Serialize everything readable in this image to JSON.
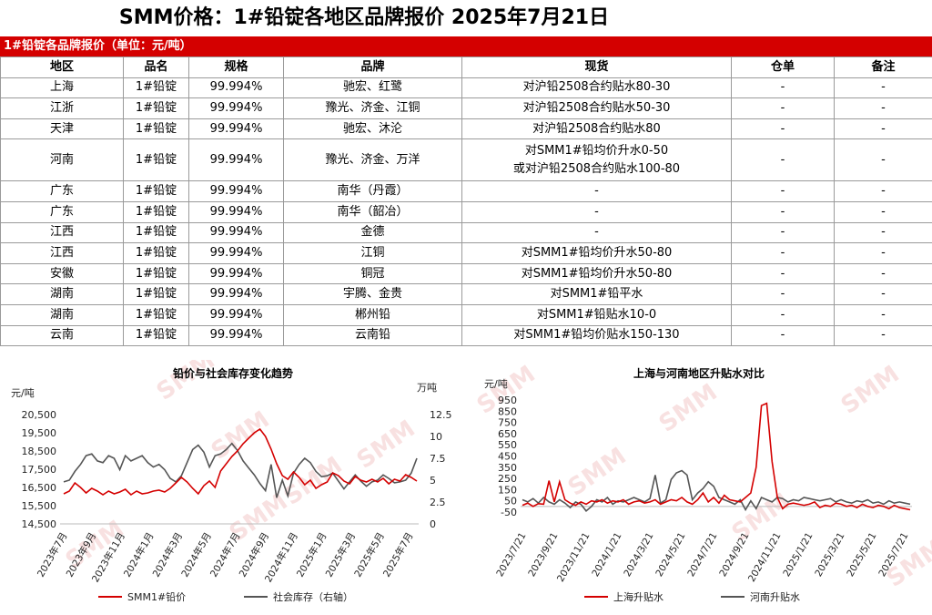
{
  "page": {
    "title": "SMM价格：1#铅锭各地区品牌报价 2025年7月21日",
    "banner": "1#铅锭各品牌报价（单位：元/吨）"
  },
  "table": {
    "headers": [
      "地区",
      "品名",
      "规格",
      "品牌",
      "现货",
      "仓单",
      "备注"
    ],
    "rows": [
      [
        "上海",
        "1#铅锭",
        "99.994%",
        "驰宏、红鹭",
        "对沪铅2508合约贴水80-30",
        "-",
        "-"
      ],
      [
        "江浙",
        "1#铅锭",
        "99.994%",
        "豫光、济金、江铜",
        "对沪铅2508合约贴水50-30",
        "-",
        "-"
      ],
      [
        "天津",
        "1#铅锭",
        "99.994%",
        "驰宏、沐沦",
        "对沪铅2508合约贴水80",
        "-",
        "-"
      ],
      [
        "河南",
        "1#铅锭",
        "99.994%",
        "豫光、济金、万洋",
        "对SMM1#铅均价升水0-50\n或对沪铅2508合约贴水100-80",
        "-",
        "-"
      ],
      [
        "广东",
        "1#铅锭",
        "99.994%",
        "南华（丹霞）",
        "-",
        "-",
        "-"
      ],
      [
        "广东",
        "1#铅锭",
        "99.994%",
        "南华（韶冶）",
        "-",
        "-",
        "-"
      ],
      [
        "江西",
        "1#铅锭",
        "99.994%",
        "金德",
        "-",
        "-",
        "-"
      ],
      [
        "江西",
        "1#铅锭",
        "99.994%",
        "江铜",
        "对SMM1#铅均价升水50-80",
        "-",
        "-"
      ],
      [
        "安徽",
        "1#铅锭",
        "99.994%",
        "铜冠",
        "对SMM1#铅均价升水50-80",
        "-",
        "-"
      ],
      [
        "湖南",
        "1#铅锭",
        "99.994%",
        "宇腾、金贵",
        "对SMM1#铅平水",
        "-",
        "-"
      ],
      [
        "湖南",
        "1#铅锭",
        "99.994%",
        "郴州铅",
        "对SMM1#铅贴水10-0",
        "-",
        "-"
      ],
      [
        "云南",
        "1#铅锭",
        "99.994%",
        "云南铅",
        "对SMM1#铅均价贴水150-130",
        "-",
        "-"
      ]
    ]
  },
  "watermark": "SMM",
  "chart_data": [
    {
      "type": "line",
      "title": "铅价与社会库存变化趋势",
      "ylabel": "元/吨",
      "y2label": "万吨",
      "ylim": [
        14500,
        20500
      ],
      "yticks": [
        "20,500",
        "19,500",
        "18,500",
        "17,500",
        "16,500",
        "15,500",
        "14,500"
      ],
      "y2lim": [
        0,
        12.5
      ],
      "y2ticks": [
        "12.5",
        "10",
        "7.5",
        "5",
        "2.5",
        "0"
      ],
      "xticks": [
        "2023年7月",
        "2023年9月",
        "2023年11月",
        "2024年1月",
        "2024年3月",
        "2024年5月",
        "2024年7月",
        "2024年9月",
        "2024年11月",
        "2025年1月",
        "2025年3月",
        "2025年5月",
        "2025年7月"
      ],
      "colors": {
        "SMM1#铅价": "#d40000",
        "社会库存（右轴）": "#555555"
      },
      "series": [
        {
          "name": "SMM1#铅价",
          "axis": "left",
          "values": [
            16150,
            16300,
            16750,
            16500,
            16200,
            16450,
            16300,
            16100,
            16300,
            16150,
            16250,
            16400,
            16100,
            16300,
            16150,
            16200,
            16300,
            16350,
            16250,
            16450,
            16750,
            17050,
            16800,
            16450,
            16150,
            16600,
            16850,
            16500,
            17400,
            17800,
            18200,
            18500,
            18900,
            19200,
            19500,
            19700,
            19300,
            18600,
            17800,
            17150,
            16950,
            17350,
            17050,
            16650,
            16900,
            16450,
            16650,
            16800,
            17300,
            17150,
            16850,
            16700,
            17100,
            16900,
            16800,
            16950,
            16800,
            17000,
            16700,
            16950,
            16850,
            17200,
            17050,
            16850
          ]
        },
        {
          "name": "社会库存（右轴）",
          "axis": "right",
          "values": [
            4.8,
            5.0,
            6.0,
            6.8,
            7.8,
            8.0,
            7.2,
            7.0,
            7.8,
            7.5,
            6.2,
            7.8,
            7.2,
            7.5,
            7.8,
            7.0,
            6.5,
            6.8,
            6.2,
            5.2,
            4.8,
            5.5,
            7.0,
            8.5,
            9.0,
            8.2,
            6.5,
            7.8,
            8.0,
            8.5,
            9.2,
            8.4,
            7.2,
            6.4,
            5.6,
            4.6,
            3.8,
            6.8,
            3.0,
            5.0,
            3.2,
            5.8,
            6.8,
            7.5,
            7.0,
            6.0,
            5.4,
            5.5,
            5.8,
            4.9,
            4.0,
            4.8,
            5.6,
            4.9,
            4.3,
            4.8,
            5.0,
            5.6,
            5.2,
            4.7,
            4.8,
            5.0,
            5.8,
            7.5
          ]
        }
      ]
    },
    {
      "type": "line",
      "title": "上海与河南地区升贴水对比",
      "ylabel": "元/吨",
      "ylim": [
        -50,
        950
      ],
      "yticks": [
        "950",
        "850",
        "750",
        "650",
        "550",
        "450",
        "350",
        "250",
        "150",
        "50",
        "-50"
      ],
      "xticks": [
        "2023/7/21",
        "2023/9/21",
        "2023/11/21",
        "2024/1/21",
        "2024/3/21",
        "2024/5/21",
        "2024/7/21",
        "2024/9/21",
        "2024/11/21",
        "2025/1/21",
        "2025/3/21",
        "2025/5/21",
        "2025/7/21"
      ],
      "colors": {
        "上海升贴水": "#d40000",
        "河南升贴水": "#555555"
      },
      "series": [
        {
          "name": "上海升贴水",
          "values": [
            10,
            30,
            0,
            25,
            20,
            230,
            40,
            220,
            60,
            30,
            10,
            40,
            20,
            50,
            40,
            60,
            30,
            50,
            40,
            60,
            20,
            40,
            50,
            30,
            40,
            60,
            20,
            40,
            60,
            50,
            80,
            40,
            20,
            60,
            120,
            40,
            80,
            30,
            100,
            60,
            50,
            40,
            80,
            120,
            350,
            900,
            920,
            400,
            80,
            -20,
            20,
            30,
            20,
            10,
            20,
            40,
            -10,
            10,
            0,
            30,
            20,
            0,
            10,
            -10,
            20,
            0,
            -10,
            10,
            0,
            -20,
            10,
            -10,
            -20,
            -30
          ]
        },
        {
          "name": "河南升贴水",
          "values": [
            60,
            40,
            70,
            30,
            80,
            40,
            20,
            60,
            30,
            -10,
            40,
            20,
            -40,
            0,
            60,
            40,
            80,
            20,
            50,
            40,
            60,
            80,
            60,
            40,
            70,
            280,
            30,
            60,
            240,
            300,
            320,
            280,
            60,
            120,
            160,
            220,
            180,
            80,
            60,
            40,
            20,
            60,
            -30,
            50,
            -20,
            80,
            60,
            40,
            80,
            70,
            40,
            60,
            50,
            80,
            70,
            60,
            50,
            60,
            70,
            40,
            60,
            40,
            30,
            50,
            40,
            60,
            30,
            40,
            20,
            50,
            30,
            40,
            30,
            20
          ]
        }
      ]
    }
  ]
}
